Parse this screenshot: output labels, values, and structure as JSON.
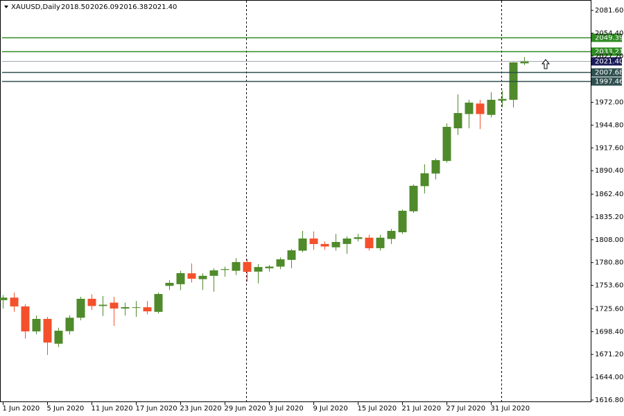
{
  "chart_data": {
    "type": "candlestick",
    "symbol": "XAUUSD,Daily",
    "header_values": [
      "2018.50",
      "2026.09",
      "2016.38",
      "2021.40"
    ],
    "categories": [
      "1 Jun 2020",
      null,
      null,
      null,
      "5 Jun 2020",
      null,
      null,
      null,
      "11 Jun 2020",
      null,
      null,
      null,
      "17 Jun 2020",
      null,
      null,
      null,
      "23 Jun 2020",
      null,
      null,
      null,
      "29 Jun 2020",
      null,
      null,
      null,
      "3 Jul 2020",
      null,
      null,
      null,
      "9 Jul 2020",
      null,
      null,
      null,
      "15 Jul 2020",
      null,
      null,
      null,
      "21 Jul 2020",
      null,
      null,
      null,
      "27 Jul 2020",
      null,
      null,
      null,
      "31 Jul 2020",
      null,
      null,
      null
    ],
    "open": [
      1736,
      1739,
      1728.5,
      1698.7,
      1713.6,
      1684,
      1699,
      1715,
      1737.6,
      1729,
      1733,
      1726,
      1727,
      1727.5,
      1722,
      1753,
      1755,
      1768,
      1761,
      1765,
      1772,
      1771,
      1781.5,
      1770,
      1774,
      1776,
      1784,
      1795,
      1809.5,
      1803,
      1799,
      1803,
      1809,
      1810.5,
      1798,
      1809,
      1817,
      1842,
      1872,
      1887,
      1902,
      1941,
      1958,
      1970.5,
      1957,
      1974,
      1975,
      2018.5
    ],
    "high": [
      1742,
      1745,
      1731,
      1717.7,
      1716,
      1703,
      1718,
      1740,
      1743,
      1741,
      1740,
      1733,
      1735,
      1735,
      1745,
      1760,
      1771,
      1779.7,
      1768,
      1774,
      1776,
      1786,
      1785,
      1779,
      1778,
      1787,
      1797,
      1818.6,
      1818,
      1806,
      1815,
      1812,
      1815,
      1814,
      1814,
      1821,
      1844,
      1874,
      1898,
      1905,
      1946.8,
      1981.5,
      1975,
      1975,
      1984,
      1986,
      2020,
      2026.09
    ],
    "low": [
      1726,
      1722,
      1690,
      1695.4,
      1670.6,
      1680,
      1695,
      1711.9,
      1724.3,
      1717,
      1705.3,
      1717.7,
      1716,
      1719,
      1720,
      1748,
      1748,
      1757,
      1748,
      1746,
      1764,
      1766,
      1758,
      1756,
      1770,
      1773,
      1774,
      1793,
      1796,
      1796,
      1795,
      1791.3,
      1806,
      1795,
      1795,
      1803,
      1815,
      1840,
      1863.3,
      1880,
      1900,
      1933,
      1941,
      1940,
      1954,
      1966,
      1965.8,
      2016.38
    ],
    "close": [
      1739,
      1728.5,
      1698.7,
      1713.6,
      1685.4,
      1699.5,
      1715,
      1737.6,
      1729,
      1730.5,
      1726,
      1727.6,
      1727.5,
      1722.6,
      1743.3,
      1756.6,
      1768.2,
      1761.5,
      1765,
      1771.5,
      1773,
      1781.4,
      1769.8,
      1775.5,
      1776,
      1784.7,
      1795.4,
      1809.5,
      1802.9,
      1800,
      1805.4,
      1809.5,
      1811,
      1797.9,
      1810.5,
      1818.6,
      1842.6,
      1872.4,
      1887.3,
      1903,
      1942.7,
      1959.2,
      1971.6,
      1958,
      1975,
      1976,
      2019.6,
      2021.4
    ],
    "up_color": "#4f8a2b",
    "down_color": "#f4502c",
    "ylim": [
      1614.3,
      2092.4
    ],
    "yticks": [
      {
        "value": 1616.8,
        "label": "1616.80"
      },
      {
        "value": 1644,
        "label": "1644.00"
      },
      {
        "value": 1671.2,
        "label": "1671.20"
      },
      {
        "value": 1698.4,
        "label": "1698.40"
      },
      {
        "value": 1725.6,
        "label": "1725.60"
      },
      {
        "value": 1753.6,
        "label": "1753.60"
      },
      {
        "value": 1780.8,
        "label": "1780.80"
      },
      {
        "value": 1808,
        "label": "1808.00"
      },
      {
        "value": 1835.2,
        "label": "1835.20"
      },
      {
        "value": 1862.4,
        "label": "1862.40"
      },
      {
        "value": 1890.4,
        "label": "1890.40"
      },
      {
        "value": 1917.6,
        "label": "1917.60"
      },
      {
        "value": 1944.8,
        "label": "1944.80"
      },
      {
        "value": 1972,
        "label": "1972.00"
      },
      {
        "value": 2027.2,
        "label": "2027.20"
      },
      {
        "value": 2054.4,
        "label": "2054.40"
      },
      {
        "value": 2081.6,
        "label": "2081.60"
      }
    ],
    "levels": [
      {
        "value": 2049.39,
        "label": "2049.39",
        "color": "#2e8b22"
      },
      {
        "value": 2033.21,
        "label": "2033.21",
        "color": "#2e8b22"
      },
      {
        "value": 2021.4,
        "label": "2021.40",
        "color": "#1c1c5a"
      },
      {
        "value": 2007.68,
        "label": "2007.68",
        "color": "#2f4f4f"
      },
      {
        "value": 1997.46,
        "label": "1997.46",
        "color": "#2f4f4f"
      }
    ]
  }
}
